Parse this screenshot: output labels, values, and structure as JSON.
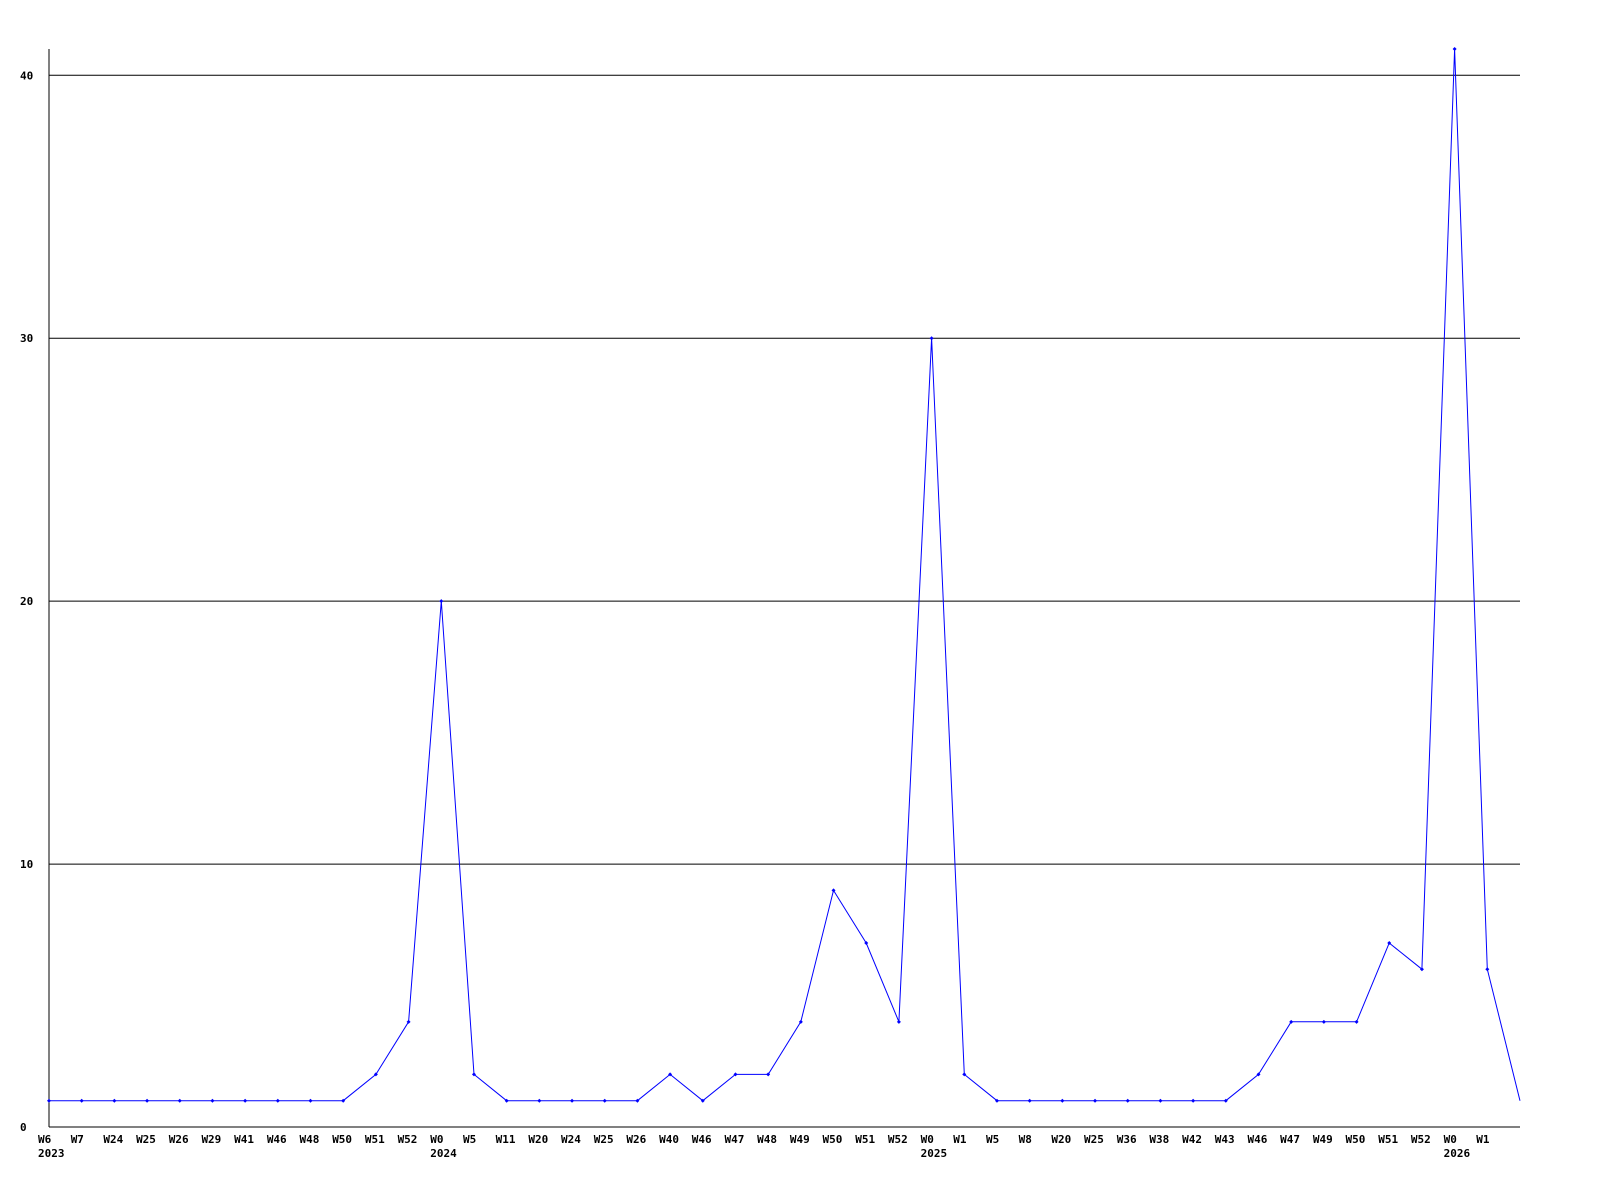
{
  "chart_data": {
    "type": "line",
    "title": "",
    "xlabel": "",
    "ylabel": "",
    "ylim": [
      0,
      41
    ],
    "yticks": [
      0,
      10,
      20,
      30,
      40
    ],
    "grid": "horizontal",
    "line_color": "#0000ff",
    "categories": [
      "W6",
      "W7",
      "W24",
      "W25",
      "W26",
      "W29",
      "W41",
      "W46",
      "W48",
      "W50",
      "W51",
      "W52",
      "W0",
      "W5",
      "W11",
      "W20",
      "W24",
      "W25",
      "W26",
      "W40",
      "W46",
      "W47",
      "W48",
      "W49",
      "W50",
      "W51",
      "W52",
      "W0",
      "W1",
      "W5",
      "W8",
      "W20",
      "W25",
      "W36",
      "W38",
      "W42",
      "W43",
      "W46",
      "W47",
      "W49",
      "W50",
      "W51",
      "W52",
      "W0",
      "W1",
      ""
    ],
    "year_labels": [
      {
        "index": 0,
        "label": "2023"
      },
      {
        "index": 12,
        "label": "2024"
      },
      {
        "index": 27,
        "label": "2025"
      },
      {
        "index": 43,
        "label": "2026"
      }
    ],
    "values": [
      1,
      1,
      1,
      1,
      1,
      1,
      1,
      1,
      1,
      1,
      2,
      4,
      20,
      2,
      1,
      1,
      1,
      1,
      1,
      2,
      1,
      2,
      2,
      4,
      9,
      7,
      4,
      30,
      2,
      1,
      1,
      1,
      1,
      1,
      1,
      1,
      1,
      2,
      4,
      4,
      4,
      7,
      6,
      41,
      6,
      1
    ]
  }
}
